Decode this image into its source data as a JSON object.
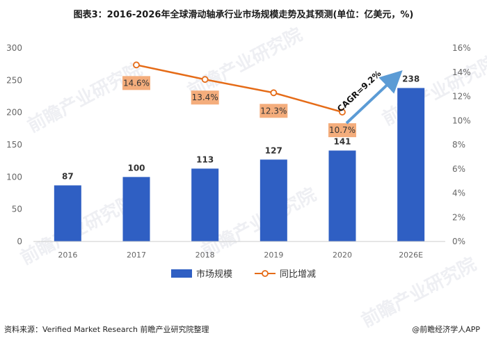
{
  "title": "图表3：2016-2026年全球滑动轴承行业市场规模走势及其预测(单位：亿美元，%)",
  "colors": {
    "bar": "#2f5fc3",
    "line": "#e56b17",
    "label_box": "#f4ad7c",
    "arrow": "#5b9bd5",
    "axis_text": "#666666"
  },
  "chart_data": {
    "type": "bar",
    "categories": [
      "2016",
      "2017",
      "2018",
      "2019",
      "2020",
      "2026E"
    ],
    "series": [
      {
        "name": "市场规模",
        "type": "bar",
        "axis": "left",
        "values": [
          87,
          100,
          113,
          127,
          141,
          238
        ]
      },
      {
        "name": "同比增减",
        "type": "line",
        "axis": "right",
        "values": [
          null,
          14.6,
          13.4,
          12.3,
          10.7,
          null
        ]
      }
    ],
    "bar_labels": [
      "87",
      "100",
      "113",
      "127",
      "141",
      "238"
    ],
    "line_labels": [
      "",
      "14.6%",
      "13.4%",
      "12.3%",
      "10.7%",
      ""
    ],
    "y_left": {
      "min": 0,
      "max": 300,
      "ticks": [
        "0",
        "50",
        "100",
        "150",
        "200",
        "250",
        "300"
      ]
    },
    "y_right": {
      "min": 0,
      "max": 16,
      "ticks": [
        "0%",
        "2%",
        "4%",
        "6%",
        "8%",
        "10%",
        "12%",
        "14%",
        "16%"
      ]
    },
    "annotation": "CAGR=9.2%",
    "grid": false,
    "legend_position": "bottom"
  },
  "footer": {
    "source": "资料来源：Verified Market Research 前瞻产业研究院整理",
    "brand": "@前瞻经济学人APP"
  },
  "watermark": "前瞻产业研究院"
}
